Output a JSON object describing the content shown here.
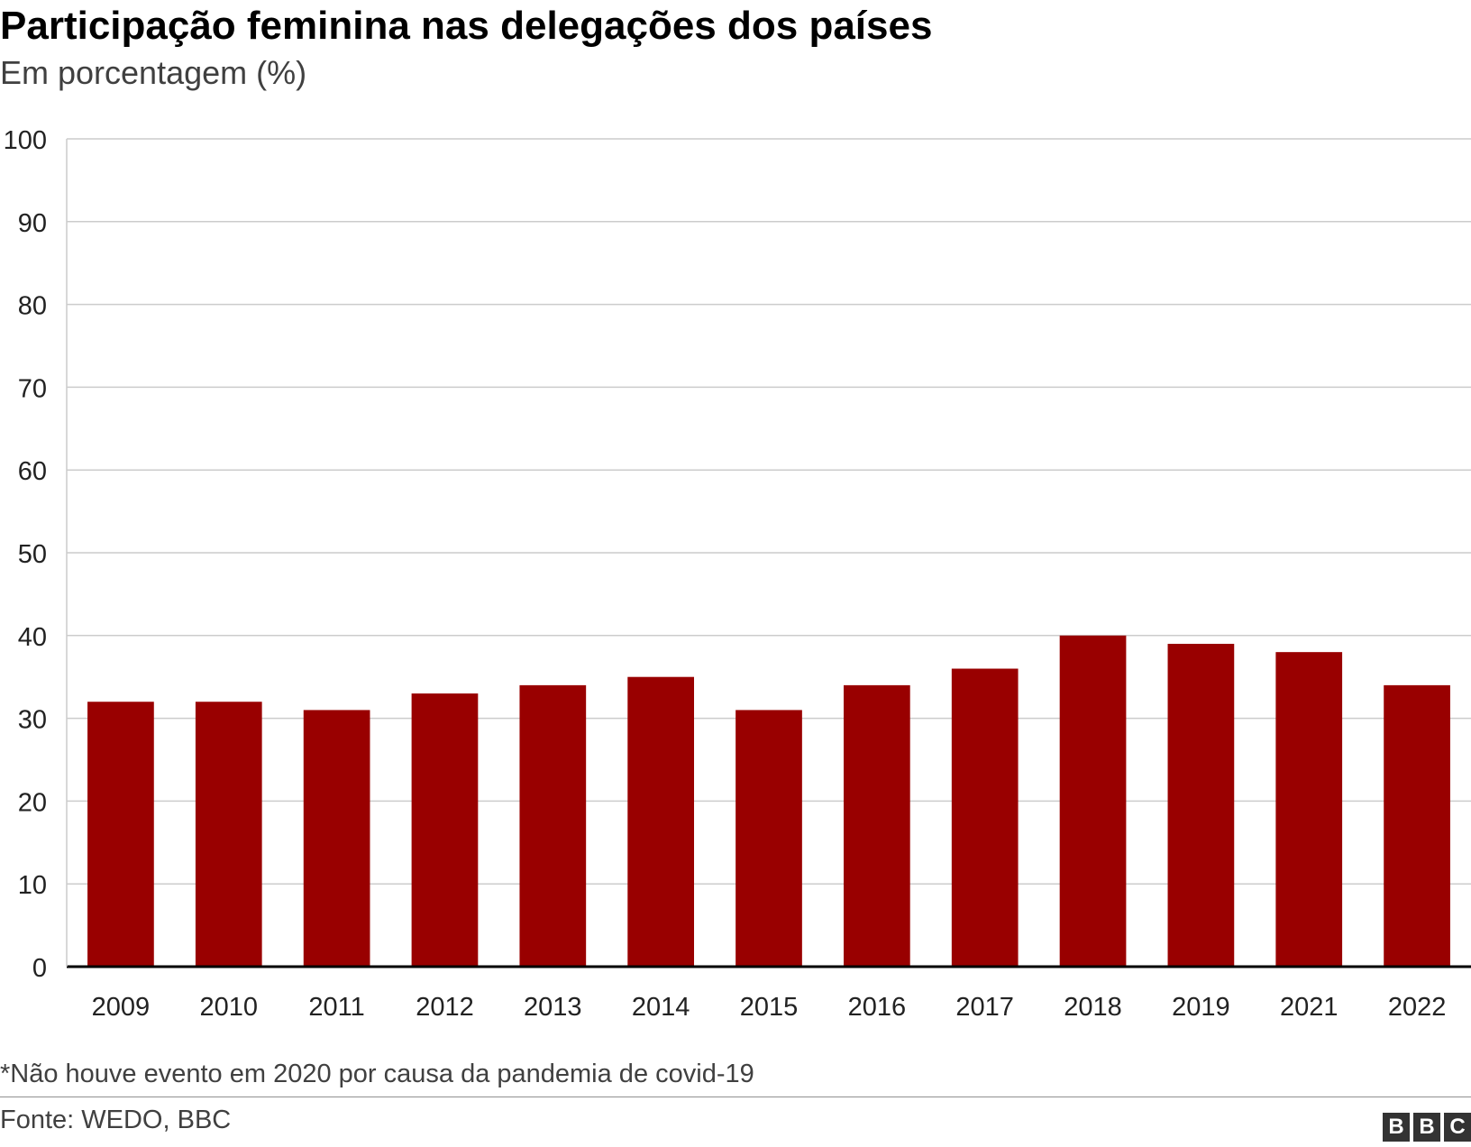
{
  "chart_data": {
    "type": "bar",
    "title": "Participação feminina nas delegações dos países",
    "subtitle": "Em porcentagem (%)",
    "categories": [
      "2009",
      "2010",
      "2011",
      "2012",
      "2013",
      "2014",
      "2015",
      "2016",
      "2017",
      "2018",
      "2019",
      "2021",
      "2022"
    ],
    "values": [
      32,
      32,
      31,
      33,
      34,
      35,
      31,
      34,
      36,
      40,
      39,
      38,
      34
    ],
    "ylim": [
      0,
      100
    ],
    "yticks": [
      0,
      10,
      20,
      30,
      40,
      50,
      60,
      70,
      80,
      90,
      100
    ],
    "grid": true,
    "bar_color": "#990000"
  },
  "note": "*Não houve evento em 2020 por causa da pandemia de covid-19",
  "source": "Fonte: WEDO, BBC",
  "logo": {
    "letters": [
      "B",
      "B",
      "C"
    ]
  }
}
